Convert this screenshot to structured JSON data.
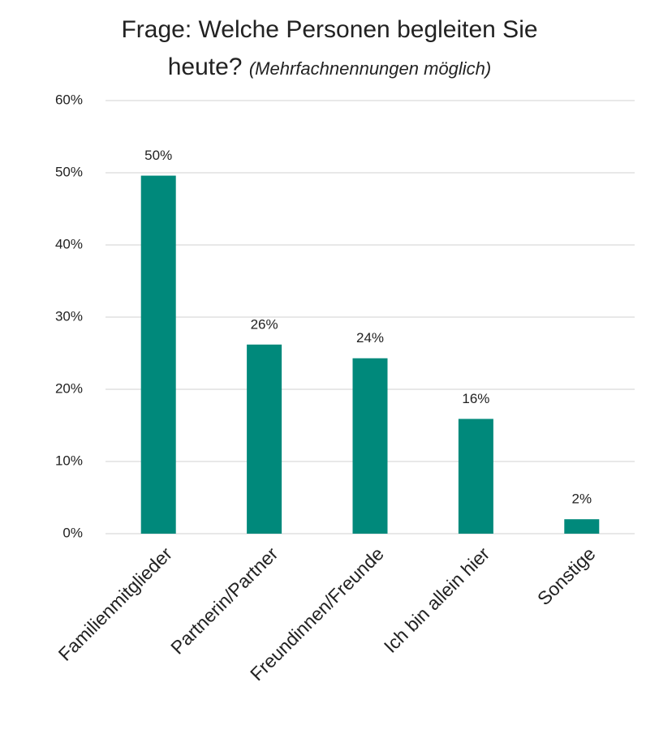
{
  "chart_data": {
    "type": "bar",
    "title": "Frage: Welche Personen begleiten Sie heute?",
    "subtitle": "(Mehrfachnennungen möglich)",
    "categories": [
      "Familienmitglieder",
      "Partnerin/Partner",
      "Freundinnen/Freunde",
      "Ich bin allein hier",
      "Sonstige"
    ],
    "values": [
      49.6,
      26.2,
      24.3,
      15.9,
      2.0
    ],
    "value_labels": [
      "50%",
      "26%",
      "24%",
      "16%",
      "2%"
    ],
    "color": "#00897b",
    "ylim": [
      0,
      60
    ],
    "yticks": [
      {
        "value": 0,
        "label": "0%"
      },
      {
        "value": 10,
        "label": "10%"
      },
      {
        "value": 20,
        "label": "20%"
      },
      {
        "value": 30,
        "label": "30%"
      },
      {
        "value": 40,
        "label": "40%"
      },
      {
        "value": 50,
        "label": "50%"
      },
      {
        "value": 60,
        "label": "60%"
      }
    ],
    "grid": true
  }
}
